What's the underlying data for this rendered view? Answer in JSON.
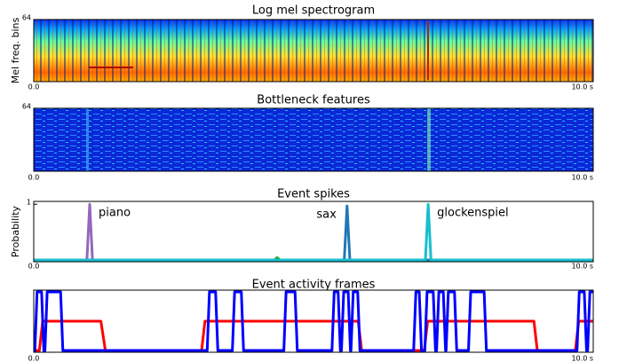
{
  "chart_data": [
    {
      "type": "heatmap",
      "title": "Log mel spectrogram",
      "ylabel": "Mel freq. bins",
      "xlim": [
        0,
        10
      ],
      "xticks": [
        {
          "value": 0,
          "label": "0.0"
        },
        {
          "value": 10,
          "label": "10.0 s"
        }
      ],
      "ylim": [
        0,
        64
      ],
      "yticks": [
        64
      ]
    },
    {
      "type": "heatmap",
      "title": "Bottleneck features",
      "xlim": [
        0,
        10
      ],
      "xticks": [
        {
          "value": 0,
          "label": "0.0"
        },
        {
          "value": 10,
          "label": "10.0 s"
        }
      ],
      "ylim": [
        0,
        64
      ],
      "yticks": [
        64
      ]
    },
    {
      "type": "line",
      "title": "Event spikes",
      "ylabel": "Probability",
      "xlim": [
        0,
        10
      ],
      "xticks": [
        {
          "value": 0,
          "label": "0.0"
        },
        {
          "value": 10,
          "label": "10.0 s"
        }
      ],
      "ylim": [
        0,
        1.05
      ],
      "yticks": [
        1
      ],
      "series": [
        {
          "name": "piano",
          "color": "#9467bd",
          "x": [
            0,
            0.95,
            1.0,
            1.05,
            10
          ],
          "values": [
            0.03,
            0.03,
            1,
            0.03,
            0.03
          ]
        },
        {
          "color": "#2ca02c",
          "x": [
            0,
            4.3,
            4.35,
            4.4,
            10
          ],
          "values": [
            0.03,
            0.03,
            0.07,
            0.03,
            0.03
          ]
        },
        {
          "name": "sax",
          "color": "#1f77b4",
          "x": [
            0,
            5.55,
            5.6,
            5.65,
            10
          ],
          "values": [
            0.03,
            0.03,
            0.97,
            0.03,
            0.03
          ]
        },
        {
          "name": "glockenspiel",
          "color": "#17becf",
          "x": [
            0,
            7.0,
            7.05,
            7.1,
            10
          ],
          "values": [
            0.03,
            0.03,
            1,
            0.03,
            0.03
          ]
        }
      ]
    },
    {
      "type": "line",
      "title": "Event activity frames",
      "xlim": [
        0,
        10
      ],
      "xticks": [
        {
          "value": 0,
          "label": "0.0"
        },
        {
          "value": 10,
          "label": "10.0 s"
        }
      ],
      "ylim": [
        -0.03,
        1.03
      ],
      "series": [
        {
          "color": "#ff0000",
          "x": [
            0,
            0.1,
            0.16,
            1.2,
            1.28,
            3.0,
            3.06,
            5.8,
            5.86,
            6.98,
            7.04,
            8.94,
            9.0,
            9.68,
            9.74,
            10
          ],
          "values": [
            0,
            0,
            0.5,
            0.5,
            0,
            0,
            0.5,
            0.5,
            0,
            0,
            0.5,
            0.5,
            0,
            0,
            0.5,
            0.5
          ]
        },
        {
          "color": "#0000ff",
          "x": [
            0,
            0.02,
            0.06,
            0.14,
            0.18,
            0.2,
            0.24,
            0.48,
            0.52,
            3.1,
            3.14,
            3.25,
            3.29,
            3.55,
            3.59,
            3.71,
            3.75,
            4.47,
            4.51,
            4.67,
            4.71,
            5.33,
            5.37,
            5.44,
            5.48,
            5.5,
            5.54,
            5.62,
            5.66,
            5.67,
            5.71,
            5.79,
            5.83,
            6.79,
            6.83,
            6.89,
            6.93,
            6.99,
            7.03,
            7.14,
            7.18,
            7.2,
            7.24,
            7.32,
            7.36,
            7.37,
            7.41,
            7.52,
            7.56,
            7.77,
            7.81,
            8.05,
            8.09,
            9.71,
            9.75,
            9.84,
            9.88,
            9.9,
            9.94,
            10
          ],
          "values": [
            0,
            0,
            1,
            1,
            0,
            0,
            1,
            1,
            0,
            0,
            1,
            1,
            0,
            0,
            1,
            1,
            0,
            0,
            1,
            1,
            0,
            0,
            1,
            1,
            0,
            0,
            1,
            1,
            0,
            0,
            1,
            1,
            0,
            0,
            1,
            1,
            0,
            0,
            1,
            1,
            0,
            0,
            1,
            1,
            0,
            0,
            1,
            1,
            0,
            0,
            1,
            1,
            0,
            0,
            1,
            1,
            0,
            0,
            1,
            1
          ]
        }
      ]
    }
  ]
}
